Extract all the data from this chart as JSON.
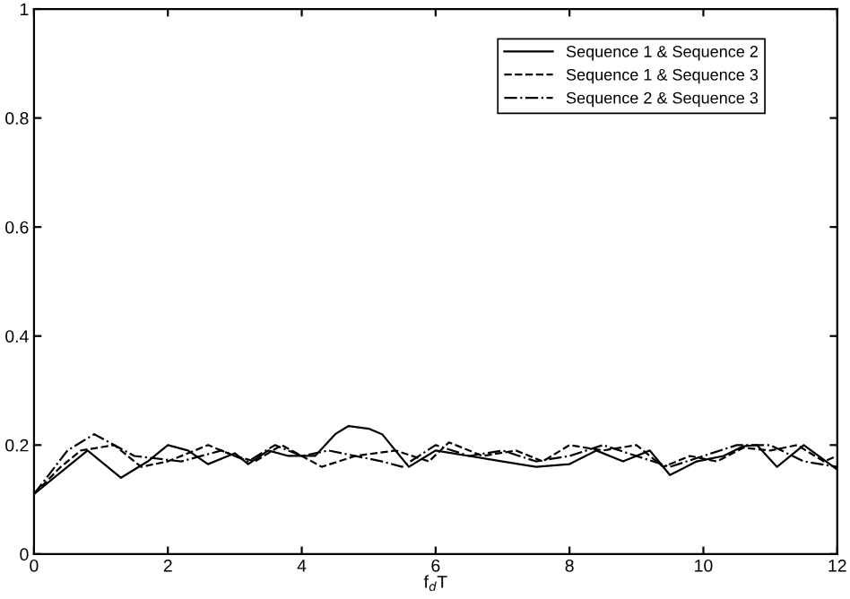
{
  "chart_data": {
    "type": "line",
    "xlabel": "f$_{d}$T",
    "xlim": [
      0,
      12
    ],
    "ylim": [
      0,
      1
    ],
    "xticks": [
      0,
      2,
      4,
      6,
      8,
      10,
      12
    ],
    "yticks": [
      0,
      0.2,
      0.4,
      0.6,
      0.8,
      1
    ],
    "grid": false,
    "legend": "top right",
    "marker": "none",
    "series": [
      {
        "name": "Sequence 1 & Sequence 2",
        "color": "#000000",
        "line_style": "solid",
        "x": [
          0,
          0.4,
          0.8,
          1.3,
          1.7,
          2.0,
          2.3,
          2.6,
          3.0,
          3.2,
          3.5,
          3.8,
          4.2,
          4.5,
          4.7,
          5.0,
          5.2,
          5.6,
          6.0,
          6.5,
          7.0,
          7.5,
          8.0,
          8.4,
          8.8,
          9.2,
          9.5,
          9.9,
          10.3,
          10.6,
          10.8,
          11.1,
          11.5,
          12
        ],
        "values": [
          0.11,
          0.15,
          0.19,
          0.14,
          0.17,
          0.2,
          0.19,
          0.165,
          0.185,
          0.165,
          0.19,
          0.18,
          0.18,
          0.22,
          0.235,
          0.23,
          0.22,
          0.16,
          0.19,
          0.18,
          0.17,
          0.16,
          0.165,
          0.19,
          0.17,
          0.19,
          0.145,
          0.17,
          0.18,
          0.198,
          0.2,
          0.16,
          0.2,
          0.155
        ]
      },
      {
        "name": "Sequence 1 & Sequence 3",
        "color": "#000000",
        "line_style": "dashed",
        "x": [
          0,
          0.4,
          0.7,
          1.2,
          1.6,
          2.0,
          2.6,
          3.0,
          3.3,
          3.7,
          4.3,
          4.8,
          5.4,
          5.9,
          6.2,
          6.7,
          7.2,
          7.6,
          8.0,
          8.5,
          9.0,
          9.4,
          9.8,
          10.2,
          10.6,
          11.0,
          11.4,
          11.8,
          12
        ],
        "values": [
          0.11,
          0.16,
          0.19,
          0.2,
          0.16,
          0.17,
          0.2,
          0.18,
          0.17,
          0.2,
          0.16,
          0.18,
          0.19,
          0.17,
          0.205,
          0.18,
          0.19,
          0.17,
          0.2,
          0.19,
          0.2,
          0.16,
          0.18,
          0.17,
          0.195,
          0.19,
          0.2,
          0.17,
          0.18
        ]
      },
      {
        "name": "Sequence 2 & Sequence 3",
        "color": "#000000",
        "line_style": "dashdot",
        "x": [
          0,
          0.5,
          0.9,
          1.5,
          2.2,
          2.8,
          3.2,
          3.6,
          4.0,
          4.4,
          5.2,
          5.5,
          6.0,
          6.5,
          7.0,
          7.5,
          8.0,
          8.5,
          9.0,
          9.5,
          10.0,
          10.5,
          11.0,
          11.5,
          12
        ],
        "values": [
          0.11,
          0.19,
          0.22,
          0.18,
          0.17,
          0.19,
          0.17,
          0.2,
          0.18,
          0.19,
          0.17,
          0.16,
          0.2,
          0.18,
          0.19,
          0.17,
          0.18,
          0.2,
          0.18,
          0.16,
          0.18,
          0.2,
          0.2,
          0.17,
          0.16
        ]
      }
    ]
  }
}
